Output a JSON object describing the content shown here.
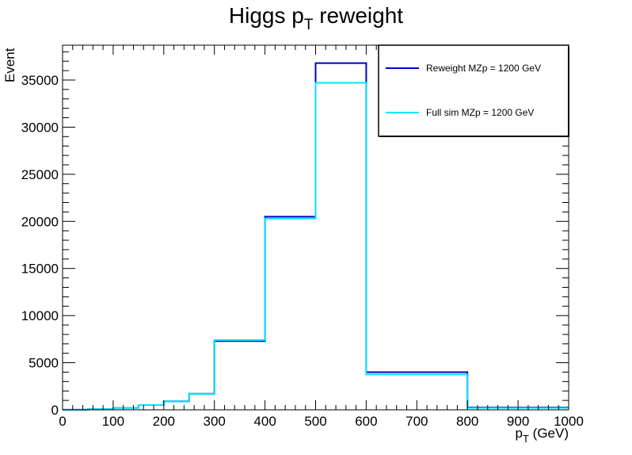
{
  "chart_data": {
    "type": "line",
    "title": {
      "main": "Higgs p",
      "sub": "T",
      "rest": " reweight"
    },
    "xlabel": {
      "main": "p",
      "sub": "T",
      "rest": " (GeV)"
    },
    "ylabel": "Event",
    "xlim": [
      0,
      1000
    ],
    "ylim": [
      0,
      38700
    ],
    "x_ticks": [
      0,
      100,
      200,
      300,
      400,
      500,
      600,
      700,
      800,
      900,
      1000
    ],
    "y_ticks": [
      0,
      5000,
      10000,
      15000,
      20000,
      25000,
      30000,
      35000
    ],
    "bin_edges": [
      0,
      50,
      100,
      150,
      200,
      250,
      300,
      400,
      500,
      600,
      800,
      1000
    ],
    "grid": false,
    "legend_position": "top-right",
    "series": [
      {
        "name": "Reweight MZp = 1200 GeV",
        "color": "#0000cc",
        "values": [
          10,
          60,
          200,
          500,
          900,
          1700,
          7300,
          20500,
          36800,
          4000,
          250
        ]
      },
      {
        "name": "Full sim MZp = 1200 GeV",
        "color": "#00e5ff",
        "values": [
          10,
          60,
          200,
          500,
          900,
          1700,
          7400,
          20300,
          34700,
          3750,
          200
        ]
      }
    ]
  }
}
